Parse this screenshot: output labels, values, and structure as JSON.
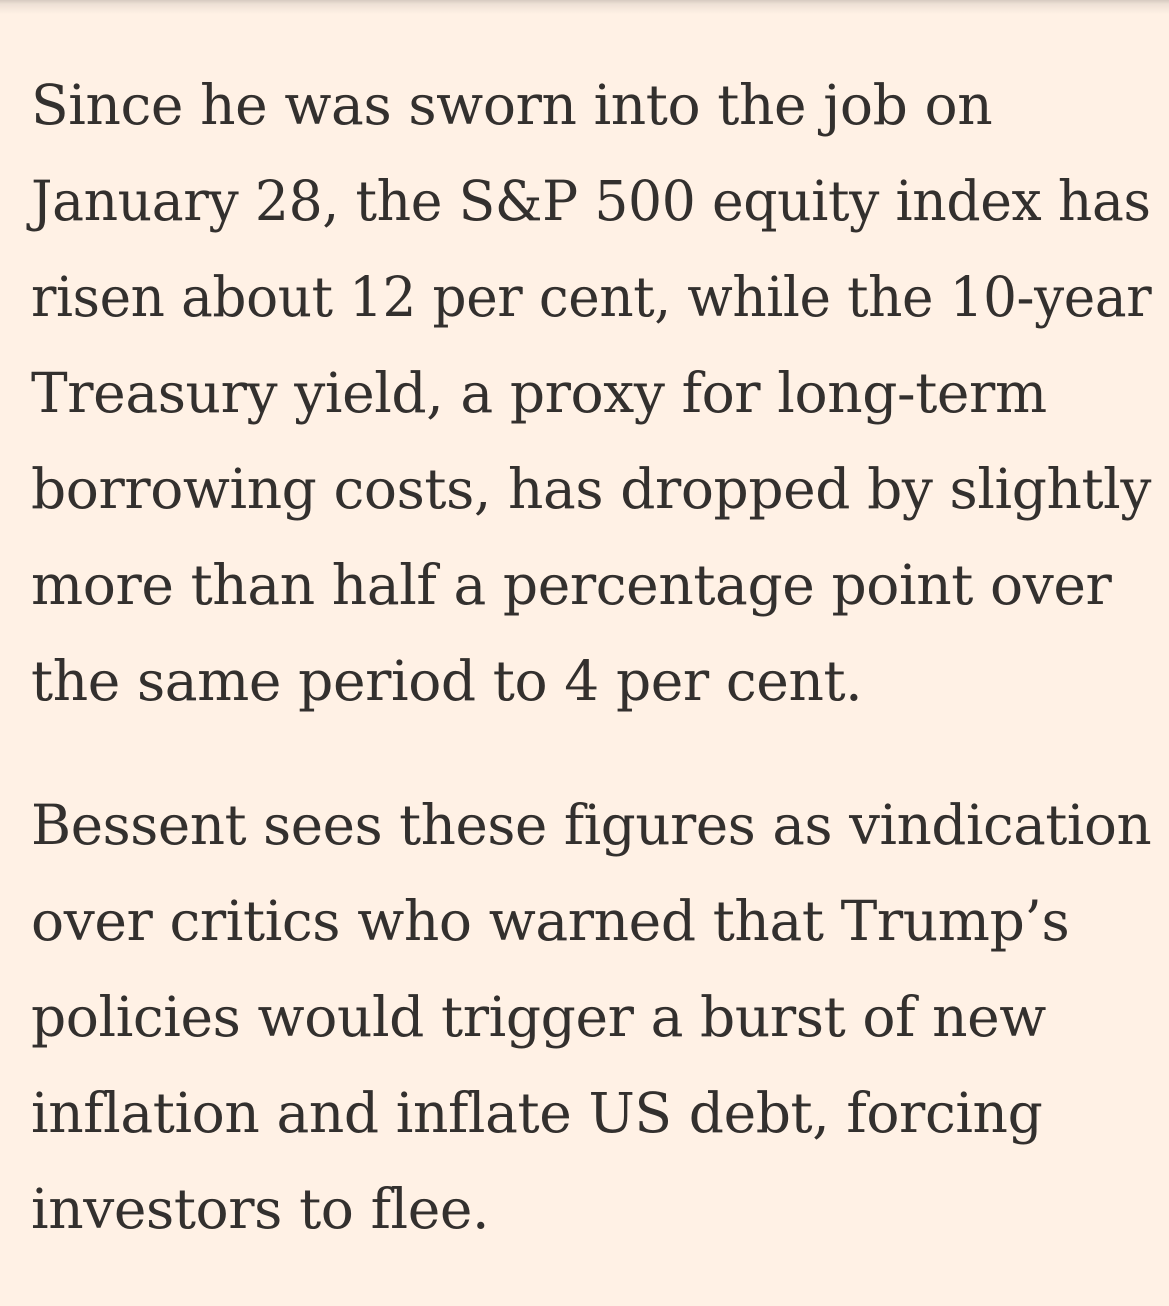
{
  "article": {
    "paragraphs": [
      {
        "lines": [
          "Since he was sworn into the job on",
          "January 28, the S&P 500 equity index has",
          "risen about 12 per cent, while the 10-year",
          "Treasury yield, a proxy for long-term",
          "borrowing costs, has dropped by slightly",
          "more than half a percentage point over",
          "the same period to 4 per cent."
        ]
      },
      {
        "lines": [
          "Bessent sees these figures as vindication",
          "over critics who warned that Trump’s",
          "policies would trigger a burst of new",
          "inflation and inflate US debt, forcing",
          "investors to flee."
        ]
      }
    ]
  },
  "colors": {
    "background": "#FFF1E5",
    "text": "#33302E"
  }
}
